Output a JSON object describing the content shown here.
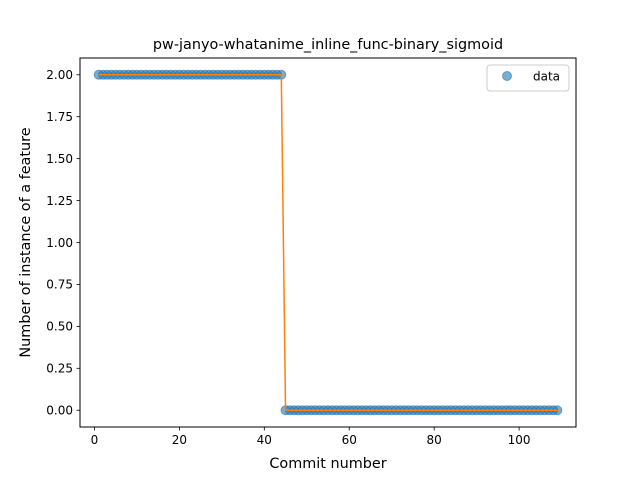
{
  "chart_data": {
    "type": "scatter",
    "title": "pw-janyo-whatanime_inline_func-binary_sigmoid",
    "xlabel": "Commit number",
    "ylabel": "Number of instance of a feature",
    "xlim": [
      -3.4,
      113.4
    ],
    "ylim": [
      -0.1,
      2.1
    ],
    "xticks": [
      0,
      20,
      40,
      60,
      80,
      100
    ],
    "yticks": [
      0.0,
      0.25,
      0.5,
      0.75,
      1.0,
      1.25,
      1.5,
      1.75,
      2.0
    ],
    "ytick_labels": [
      "0.00",
      "0.25",
      "0.50",
      "0.75",
      "1.00",
      "1.25",
      "1.50",
      "1.75",
      "2.00"
    ],
    "xtick_labels": [
      "0",
      "20",
      "40",
      "60",
      "80",
      "100"
    ],
    "legend_position": "top-right",
    "series": [
      {
        "name": "data",
        "kind": "scatter",
        "color": "#1f77b4",
        "segments": [
          {
            "x_start": 1,
            "x_end": 44,
            "y": 2
          },
          {
            "x_start": 45,
            "x_end": 109,
            "y": 0
          }
        ]
      },
      {
        "kind": "line",
        "color": "#ff7f0e",
        "segments": [
          {
            "x_start": 1,
            "x_end": 44,
            "y": 2
          },
          {
            "x_start": 45,
            "x_end": 109,
            "y": 0
          }
        ]
      }
    ]
  }
}
